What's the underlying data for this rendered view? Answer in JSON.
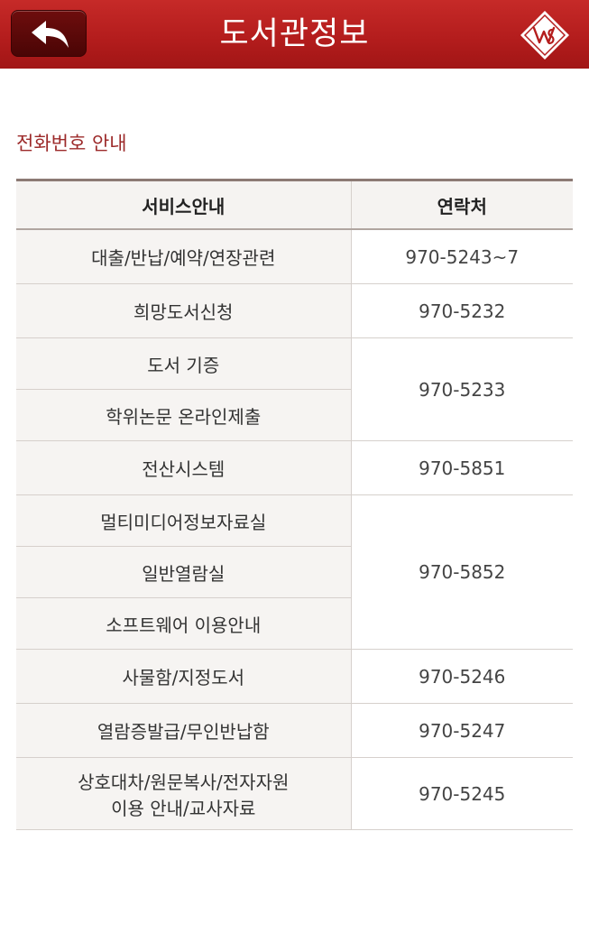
{
  "header": {
    "title": "도서관정보",
    "back_icon": "back-arrow-icon",
    "logo_icon": "library-logo-icon"
  },
  "section": {
    "title": "전화번호 안내"
  },
  "table": {
    "headers": [
      "서비스안내",
      "연락처"
    ],
    "rows": [
      {
        "services": [
          "대출/반납/예약/연장관련"
        ],
        "phone": "970-5243~7"
      },
      {
        "services": [
          "희망도서신청"
        ],
        "phone": "970-5232"
      },
      {
        "services": [
          "도서 기증",
          "학위논문 온라인제출"
        ],
        "phone": "970-5233"
      },
      {
        "services": [
          "전산시스템"
        ],
        "phone": "970-5851"
      },
      {
        "services": [
          "멀티미디어정보자료실",
          "일반열람실",
          "소프트웨어 이용안내"
        ],
        "phone": "970-5852"
      },
      {
        "services": [
          "사물함/지정도서"
        ],
        "phone": "970-5246"
      },
      {
        "services": [
          "열람증발급/무인반납함"
        ],
        "phone": "970-5247"
      },
      {
        "services": [
          "상호대차/원문복사/전자자원",
          "이용 안내/교사자료"
        ],
        "phone": "970-5245"
      }
    ]
  },
  "colors": {
    "header_red": "#b41d1d",
    "accent_text": "#9c2a2a"
  }
}
